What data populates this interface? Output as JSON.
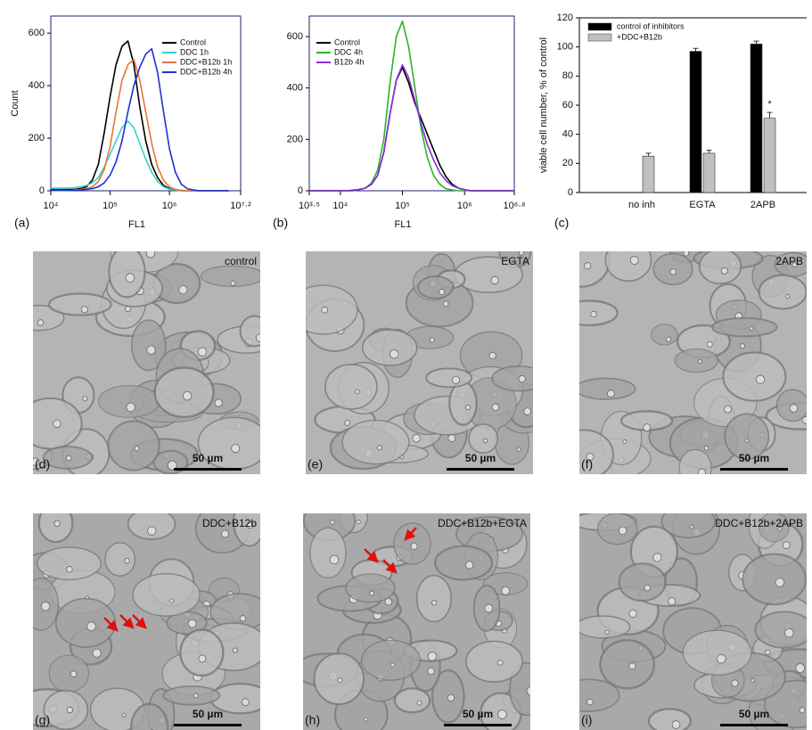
{
  "chart_data": [
    {
      "type": "line",
      "panel": "(a)",
      "xlabel": "FL1",
      "ylabel": "Count",
      "xscale": "log",
      "legend": "upper right",
      "x": [
        10000,
        12589,
        15849,
        19953,
        25119,
        31623,
        39811,
        50119,
        63096,
        79433,
        100000,
        125893,
        158489,
        199526,
        251189,
        316228,
        398107,
        501187,
        630957,
        794328,
        1000000,
        1258925,
        1584893,
        1995262,
        2511886,
        3162278,
        3981072,
        5011872,
        6309573,
        7943282,
        10000000
      ],
      "xlim": [
        10000,
        15848932
      ],
      "xticks": [
        {
          "value": 10000,
          "label": "10⁴"
        },
        {
          "value": 100000,
          "label": "10⁵"
        },
        {
          "value": 1000000,
          "label": "10⁶"
        },
        {
          "value": 15848932,
          "label": "10⁷·²"
        }
      ],
      "ylim": [
        0,
        665
      ],
      "yticks": [
        0,
        200,
        400,
        600
      ],
      "series": [
        {
          "name": "Control",
          "color": "#000000",
          "values": [
            5,
            5,
            5,
            5,
            5,
            8,
            15,
            40,
            100,
            220,
            360,
            480,
            550,
            570,
            480,
            320,
            190,
            100,
            50,
            20,
            8,
            3,
            0,
            0,
            0,
            0,
            0,
            0,
            0,
            0,
            0
          ]
        },
        {
          "name": "DDC 1h",
          "color": "#2fd8c4",
          "values": [
            10,
            10,
            10,
            10,
            12,
            15,
            20,
            30,
            50,
            90,
            140,
            190,
            240,
            265,
            240,
            180,
            120,
            70,
            35,
            15,
            6,
            3,
            0,
            0,
            0,
            0,
            0,
            0,
            0,
            0,
            0
          ]
        },
        {
          "name": "DDC+B12b 1h",
          "color": "#e8743b",
          "values": [
            2,
            2,
            2,
            2,
            3,
            5,
            8,
            15,
            35,
            80,
            170,
            300,
            420,
            480,
            500,
            420,
            300,
            180,
            90,
            40,
            15,
            5,
            2,
            0,
            0,
            0,
            0,
            0,
            0,
            0,
            0
          ]
        },
        {
          "name": "DDC+B12b 4h",
          "color": "#1f2fd6",
          "values": [
            2,
            2,
            2,
            2,
            2,
            3,
            5,
            8,
            15,
            30,
            60,
            110,
            190,
            300,
            400,
            470,
            520,
            540,
            450,
            300,
            160,
            70,
            25,
            8,
            3,
            0,
            0,
            0,
            0,
            0,
            0
          ]
        }
      ]
    },
    {
      "type": "line",
      "panel": "(b)",
      "xlabel": "FL1",
      "xscale": "log",
      "legend": "upper left",
      "x": [
        3162,
        3981,
        5012,
        6310,
        7943,
        10000,
        12589,
        15849,
        19953,
        25119,
        31623,
        39811,
        50119,
        63096,
        79433,
        100000,
        125893,
        158489,
        199526,
        251189,
        316228,
        398107,
        501187,
        630957,
        794328,
        1000000,
        1258925,
        1584893,
        1995262,
        2511886,
        3162278,
        3981072,
        5011872,
        6309573
      ],
      "xlim": [
        3162,
        6309573
      ],
      "xticks": [
        {
          "value": 3162,
          "label": "10³·⁵"
        },
        {
          "value": 10000,
          "label": "10⁴"
        },
        {
          "value": 100000,
          "label": "10⁵"
        },
        {
          "value": 1000000,
          "label": "10⁶"
        },
        {
          "value": 6309573,
          "label": "10⁶·⁸"
        }
      ],
      "ylim": [
        0,
        680
      ],
      "yticks": [
        0,
        200,
        400,
        600
      ],
      "series": [
        {
          "name": "Control",
          "color": "#000000",
          "values": [
            0,
            0,
            0,
            0,
            0,
            0,
            0,
            2,
            5,
            10,
            25,
            60,
            150,
            300,
            430,
            480,
            420,
            340,
            280,
            220,
            160,
            100,
            55,
            25,
            10,
            4,
            0,
            0,
            0,
            0,
            0,
            0,
            0,
            0
          ]
        },
        {
          "name": "DDC 4h",
          "color": "#2bb32b",
          "values": [
            0,
            0,
            0,
            0,
            0,
            0,
            0,
            0,
            5,
            10,
            30,
            80,
            200,
            420,
            600,
            660,
            560,
            400,
            240,
            130,
            60,
            25,
            8,
            3,
            0,
            0,
            0,
            0,
            0,
            0,
            0,
            0,
            0,
            0
          ]
        },
        {
          "name": "B12b 4h",
          "color": "#8a2be2",
          "values": [
            0,
            0,
            0,
            0,
            0,
            0,
            0,
            0,
            5,
            10,
            25,
            60,
            150,
            300,
            430,
            490,
            440,
            350,
            260,
            180,
            120,
            70,
            40,
            20,
            10,
            4,
            0,
            0,
            0,
            0,
            0,
            0,
            0,
            0
          ]
        }
      ]
    },
    {
      "type": "bar",
      "panel": "(c)",
      "ylabel": "viable cell number, % of control",
      "legend": "upper left",
      "categories": [
        "no inh",
        "EGTA",
        "2APB"
      ],
      "ylim": [
        0,
        120
      ],
      "yticks": [
        0,
        20,
        40,
        60,
        80,
        100,
        120
      ],
      "series": [
        {
          "name": "control of inhibitors",
          "color": "#000000",
          "values": [
            null,
            97,
            102
          ],
          "errors": [
            null,
            2,
            2
          ]
        },
        {
          "name": "+DDC+B12b",
          "color": "#c0c0c0",
          "values": [
            25,
            27,
            51
          ],
          "errors": [
            2,
            2,
            4
          ]
        }
      ],
      "annotation": "*"
    }
  ],
  "micrographs": [
    {
      "label": "(d)",
      "title": "control",
      "scale": "50 µm"
    },
    {
      "label": "(e)",
      "title": "EGTA",
      "scale": "50 µm"
    },
    {
      "label": "(f)",
      "title": "2APB",
      "scale": "50 µm"
    },
    {
      "label": "(g)",
      "title": "DDC+B12b",
      "scale": "50 µm"
    },
    {
      "label": "(h)",
      "title": "DDC+B12b+EGTA",
      "scale": "50 µm"
    },
    {
      "label": "(i)",
      "title": "DDC+B12b+2APB",
      "scale": "50 µm"
    }
  ]
}
